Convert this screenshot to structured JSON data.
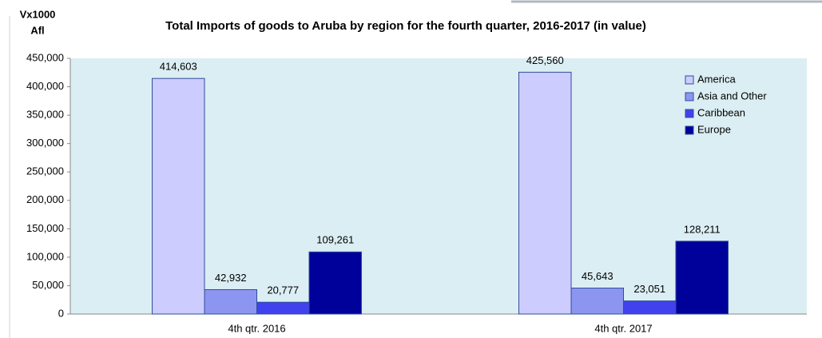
{
  "chart_data": {
    "type": "bar",
    "title": "Total Imports of goods to Aruba by region for the fourth quarter, 2016-2017 (in value)",
    "ylabel": [
      "Vx1000",
      "Afl"
    ],
    "categories": [
      "4th qtr. 2016",
      "4th qtr. 2017"
    ],
    "series": [
      {
        "name": "America",
        "color": "#ccccff",
        "values": [
          414603,
          425560
        ],
        "value_labels": [
          "414,603",
          "425,560"
        ]
      },
      {
        "name": "Asia and Other",
        "color": "#8c96f0",
        "values": [
          42932,
          45643
        ],
        "value_labels": [
          "42,932",
          "45,643"
        ]
      },
      {
        "name": "Caribbean",
        "color": "#4141ee",
        "values": [
          20777,
          23051
        ],
        "value_labels": [
          "20,777",
          "23,051"
        ]
      },
      {
        "name": "Europe",
        "color": "#00009a",
        "values": [
          109261,
          128211
        ],
        "value_labels": [
          "109,261",
          "128,211"
        ]
      }
    ],
    "ylim": [
      0,
      450000
    ],
    "yticks": [
      {
        "value": 0,
        "label": "0"
      },
      {
        "value": 50000,
        "label": "50,000"
      },
      {
        "value": 100000,
        "label": "100,000"
      },
      {
        "value": 150000,
        "label": "150,000"
      },
      {
        "value": 200000,
        "label": "200,000"
      },
      {
        "value": 250000,
        "label": "250,000"
      },
      {
        "value": 300000,
        "label": "300,000"
      },
      {
        "value": 350000,
        "label": "350,000"
      },
      {
        "value": 400000,
        "label": "400,000"
      },
      {
        "value": 450000,
        "label": "450,000"
      }
    ],
    "legend": "upper right"
  }
}
